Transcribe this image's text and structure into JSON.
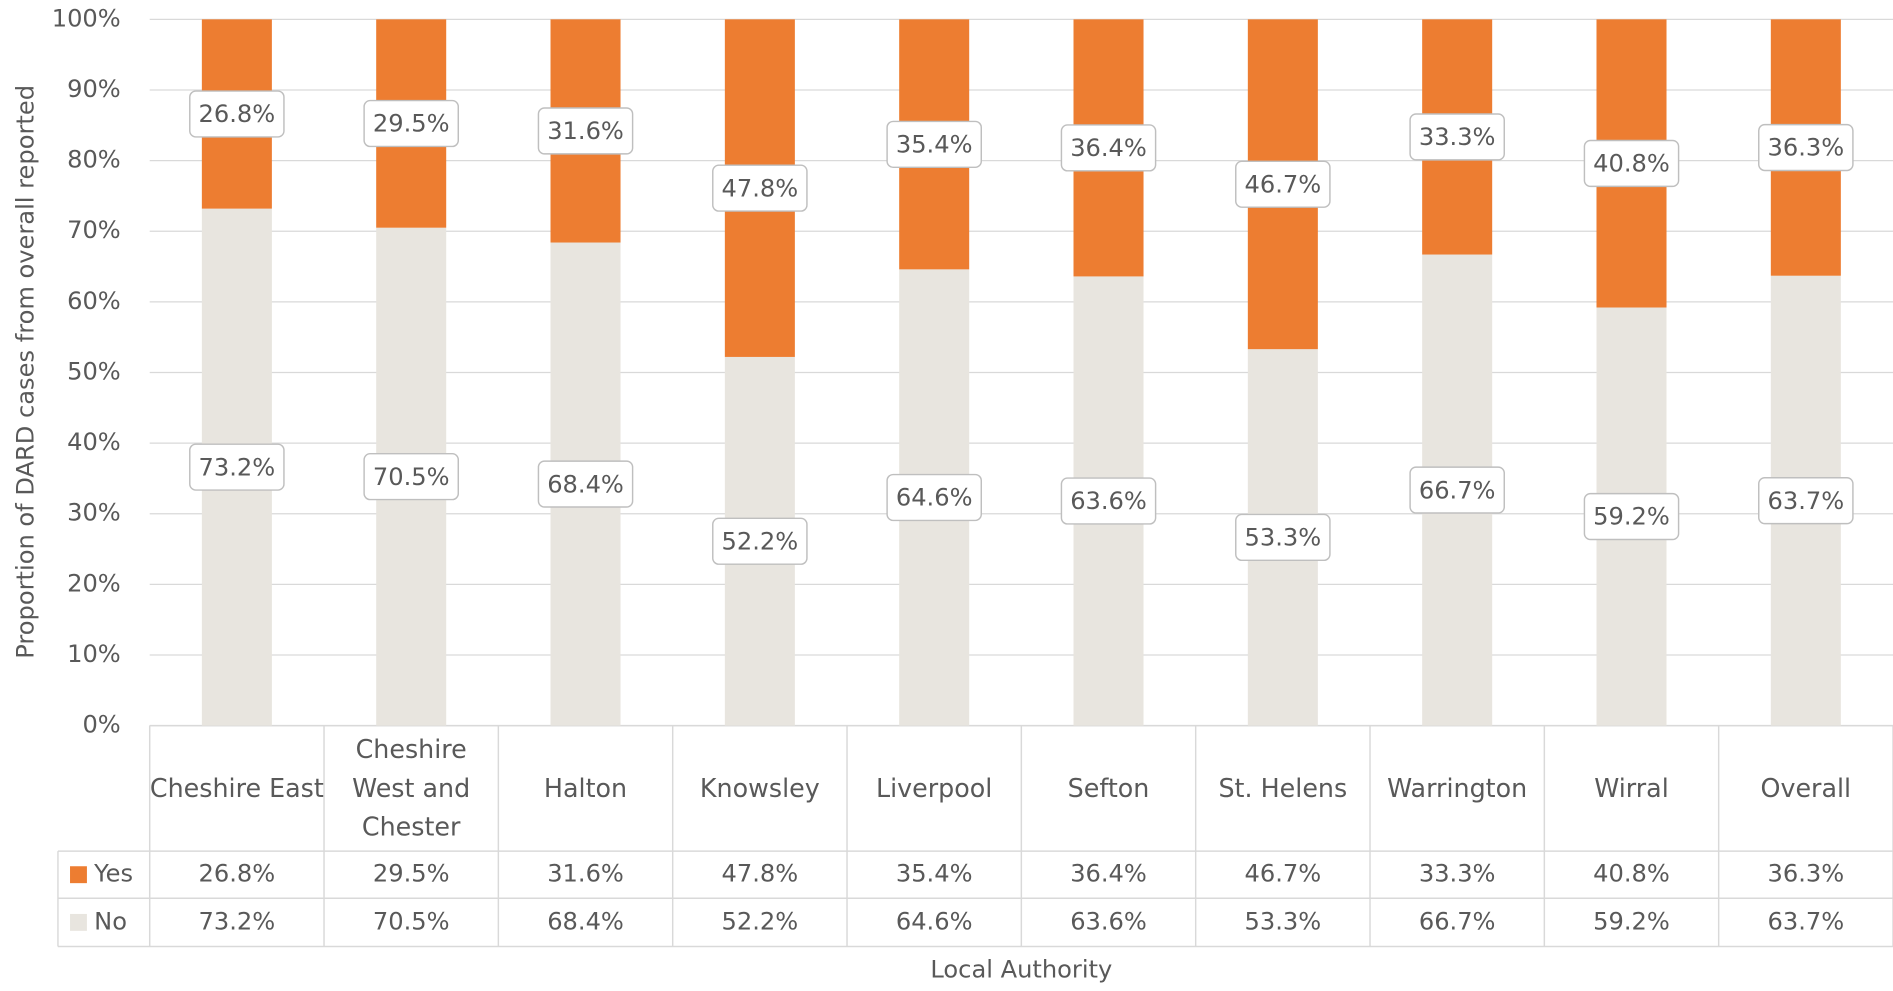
{
  "chart_data": {
    "type": "stacked_bar",
    "ylabel": "Proportion of DARD cases from overall reported",
    "xlabel": "Local Authority",
    "categories": [
      "Cheshire East",
      "Cheshire West and Chester",
      "Halton",
      "Knowsley",
      "Liverpool",
      "Sefton",
      "St. Helens",
      "Warrington",
      "Wirral",
      "Overall"
    ],
    "series": [
      {
        "name": "No",
        "color": "#e8e5df",
        "values": [
          73.2,
          70.5,
          68.4,
          52.2,
          64.6,
          63.6,
          53.3,
          66.7,
          59.2,
          63.7
        ],
        "value_labels": [
          "73.2%",
          "70.5%",
          "68.4%",
          "52.2%",
          "64.6%",
          "63.6%",
          "53.3%",
          "66.7%",
          "59.2%",
          "63.7%"
        ]
      },
      {
        "name": "Yes",
        "color": "#ed7d31",
        "values": [
          26.8,
          29.5,
          31.6,
          47.8,
          35.4,
          36.4,
          46.7,
          33.3,
          40.8,
          36.3
        ],
        "value_labels": [
          "26.8%",
          "29.5%",
          "31.6%",
          "47.8%",
          "35.4%",
          "36.4%",
          "46.7%",
          "33.3%",
          "40.8%",
          "36.3%"
        ]
      }
    ],
    "ylim": [
      0,
      100
    ],
    "yticks": [
      {
        "value": 0,
        "label": "0%"
      },
      {
        "value": 10,
        "label": "10%"
      },
      {
        "value": 20,
        "label": "20%"
      },
      {
        "value": 30,
        "label": "30%"
      },
      {
        "value": 40,
        "label": "40%"
      },
      {
        "value": 50,
        "label": "50%"
      },
      {
        "value": 60,
        "label": "60%"
      },
      {
        "value": 70,
        "label": "70%"
      },
      {
        "value": 80,
        "label": "80%"
      },
      {
        "value": 90,
        "label": "90%"
      },
      {
        "value": 100,
        "label": "100%"
      }
    ],
    "grid": true
  }
}
